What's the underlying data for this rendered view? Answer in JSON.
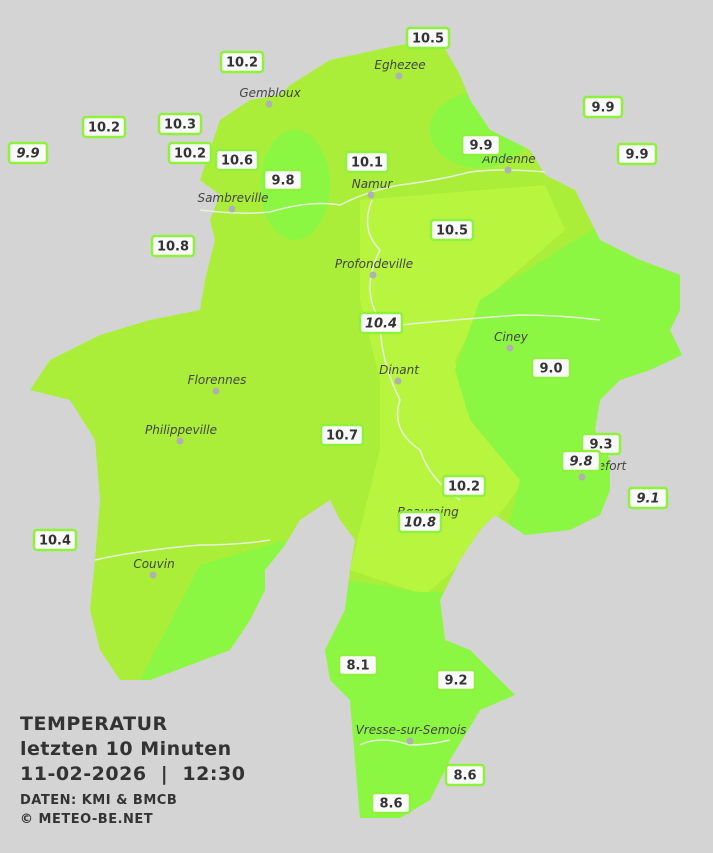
{
  "title": {
    "line1": "TEMPERATUR",
    "line2": "letzten 10 Minuten",
    "line3": "11-02-2026  |  12:30",
    "source": "DATEN: KMI & BMCB",
    "copyright": "© METEO-BE.NET"
  },
  "towns": [
    "Eghezee",
    "Gembloux",
    "Andenne",
    "Namur",
    "Sambreville",
    "Profondeville",
    "Ciney",
    "Dinant",
    "Florennes",
    "Philippeville",
    "Rochefort",
    "Beauraing",
    "Couvin",
    "Vresse-sur-Semois"
  ],
  "stations": [
    {
      "label": "10.5",
      "italic": false
    },
    {
      "label": "10.2",
      "italic": false
    },
    {
      "label": "9.9",
      "italic": false
    },
    {
      "label": "10.2",
      "italic": false
    },
    {
      "label": "10.3",
      "italic": false
    },
    {
      "label": "9.9",
      "italic": true
    },
    {
      "label": "10.2",
      "italic": false
    },
    {
      "label": "10.6",
      "italic": false
    },
    {
      "label": "9.9",
      "italic": false
    },
    {
      "label": "10.1",
      "italic": false
    },
    {
      "label": "9.9",
      "italic": false
    },
    {
      "label": "9.8",
      "italic": false
    },
    {
      "label": "10.5",
      "italic": false
    },
    {
      "label": "10.8",
      "italic": false
    },
    {
      "label": "10.4",
      "italic": true
    },
    {
      "label": "9.0",
      "italic": false
    },
    {
      "label": "10.7",
      "italic": false
    },
    {
      "label": "9.3",
      "italic": false
    },
    {
      "label": "9.8",
      "italic": true
    },
    {
      "label": "9.1",
      "italic": true
    },
    {
      "label": "10.2",
      "italic": false
    },
    {
      "label": "10.8",
      "italic": true
    },
    {
      "label": "10.4",
      "italic": false
    },
    {
      "label": "8.1",
      "italic": false
    },
    {
      "label": "9.2",
      "italic": false
    },
    {
      "label": "8.6",
      "italic": false
    },
    {
      "label": "8.6",
      "italic": false
    }
  ]
}
